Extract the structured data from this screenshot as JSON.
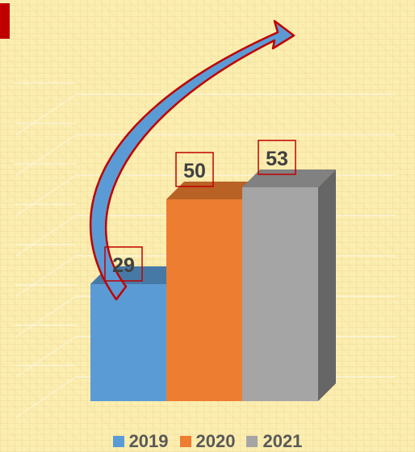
{
  "chart_data": {
    "type": "bar",
    "categories": [
      "2019",
      "2020",
      "2021"
    ],
    "values": [
      29,
      50,
      53
    ],
    "colors": [
      "#5b9bd5",
      "#ed7d31",
      "#a5a5a5"
    ],
    "title": "",
    "xlabel": "",
    "ylabel": "",
    "ylim": [
      0,
      70
    ],
    "three_d": true,
    "grid": true,
    "legend_position": "bottom",
    "annotation": "curved-arrow-upward"
  }
}
